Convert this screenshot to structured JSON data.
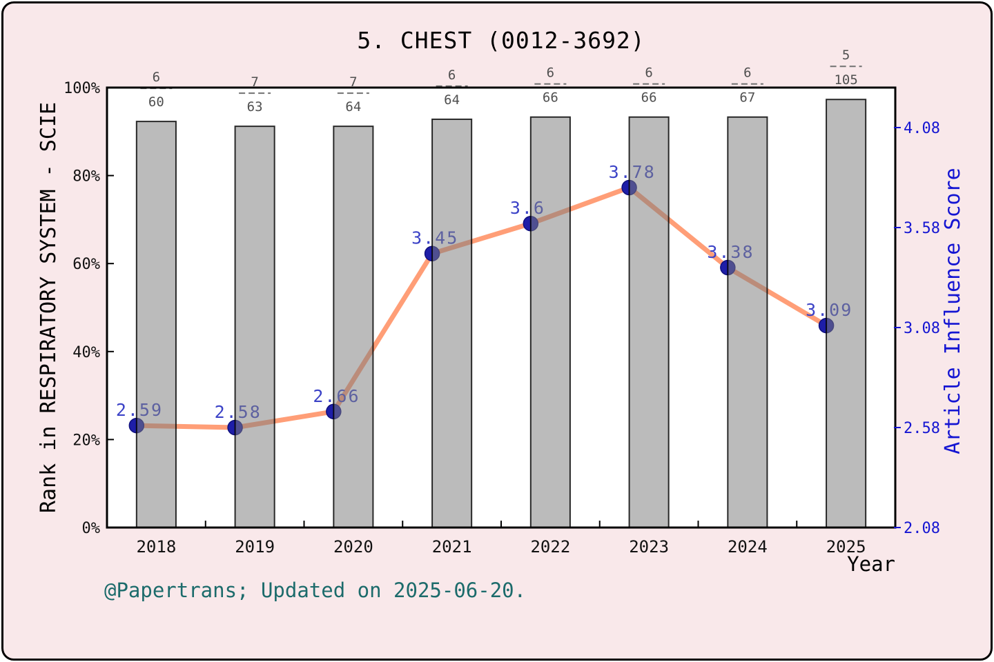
{
  "title": "5. CHEST (0012-3692)",
  "footer": "@Papertrans; Updated on 2025-06-20.",
  "chart_data": {
    "type": "bar+line",
    "categories": [
      "2018",
      "2019",
      "2020",
      "2021",
      "2022",
      "2023",
      "2024",
      "2025"
    ],
    "xlabel": "Year",
    "left_axis": {
      "label": "Rank in RESPIRATORY SYSTEM - SCIE",
      "ylim": [
        0,
        100
      ],
      "tick_values": [
        0,
        20,
        40,
        60,
        80,
        100
      ],
      "tick_suffix": "%"
    },
    "right_axis": {
      "label": "Article Influence Score",
      "ylim": [
        2.08,
        4.28
      ],
      "tick_values": [
        2.08,
        2.58,
        3.08,
        3.58,
        4.08
      ]
    },
    "bar_series": {
      "name": "rank-percentile",
      "values": [
        92.3,
        91.2,
        91.2,
        92.8,
        93.3,
        93.3,
        93.3,
        97.3
      ],
      "rank_fractions": [
        {
          "rank": "6",
          "total": "60"
        },
        {
          "rank": "7",
          "total": "63"
        },
        {
          "rank": "7",
          "total": "64"
        },
        {
          "rank": "6",
          "total": "64"
        },
        {
          "rank": "6",
          "total": "66"
        },
        {
          "rank": "6",
          "total": "66"
        },
        {
          "rank": "6",
          "total": "67"
        },
        {
          "rank": "5",
          "total": "105"
        }
      ]
    },
    "line_series": {
      "name": "article-influence-score",
      "values": [
        2.59,
        2.58,
        2.66,
        3.45,
        3.6,
        3.78,
        3.38,
        3.09
      ],
      "labels": [
        "2.59",
        "2.58",
        "2.66",
        "3.45",
        "3.6",
        "3.78",
        "3.38",
        "3.09"
      ]
    },
    "legend": "off",
    "grid": "off"
  },
  "colors": {
    "background": "#f9e8ea",
    "plot_background": "#ffffff",
    "bar_fill": "#7d7d7d",
    "bar_edge": "#000000",
    "line": "#ff9e77",
    "marker": "#1e1ea8",
    "marker_edge": "#10107e",
    "value_label": "#3c43c7",
    "right_axis": "#1414d2",
    "fraction_label": "#4f4f4f",
    "fraction_dash": "#707070",
    "axis_text": "#111111",
    "footer_text": "#1c6b6b"
  }
}
